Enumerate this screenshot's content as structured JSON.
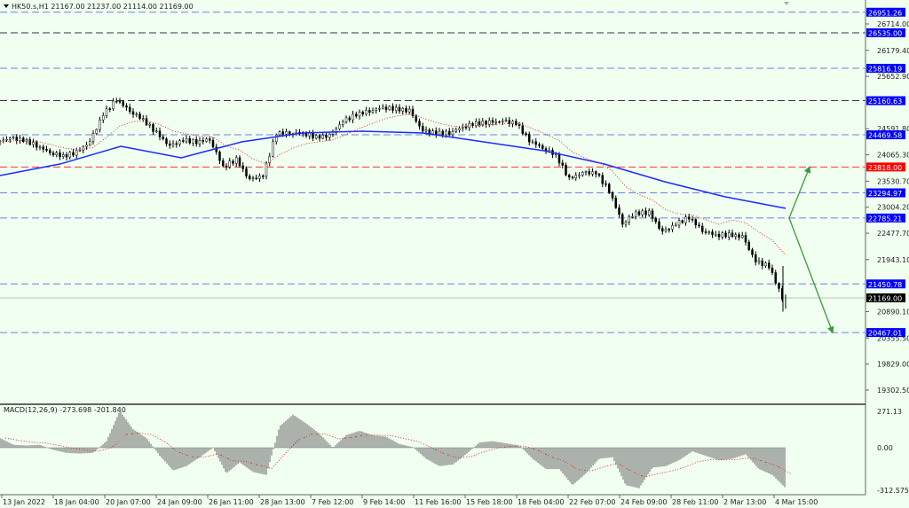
{
  "header": {
    "symbol_info": "HK50.s,H1  21167.00 21237.00 21114.00 21169.00"
  },
  "chart_data": {
    "type": "candlestick",
    "symbol": "HK50.s",
    "timeframe": "H1",
    "ohlc_last": {
      "open": 21167.0,
      "high": 21237.0,
      "low": 21114.0,
      "close": 21169.0
    },
    "ylim": [
      19100,
      27200
    ],
    "price_ticks": [
      "26714.00",
      "26179.40",
      "25652.90",
      "24591.80",
      "24065.30",
      "23530.70",
      "23004.20",
      "22477.70",
      "21943.10",
      "20890.10",
      "20355.50",
      "19829.00",
      "19302.50"
    ],
    "time_ticks": [
      "13 Jan 2022",
      "18 Jan 04:00",
      "20 Jan 07:00",
      "24 Jan 09:00",
      "26 Jan 11:00",
      "28 Jan 13:00",
      "7 Feb 12:00",
      "9 Feb 14:00",
      "11 Feb 16:00",
      "15 Feb 18:00",
      "18 Feb 04:00",
      "22 Feb 07:00",
      "24 Feb 09:00",
      "28 Feb 11:00",
      "2 Mar 13:00",
      "4 Mar 15:00"
    ],
    "close": [
      24327,
      24399,
      24363,
      24255,
      24112,
      24040,
      24112,
      24327,
      24884,
      25189,
      24955,
      24776,
      24507,
      24237,
      24363,
      24327,
      24381,
      23825,
      23968,
      23555,
      23645,
      24507,
      24507,
      24507,
      24417,
      24453,
      24740,
      24884,
      24955,
      25027,
      24991,
      24955,
      24542,
      24507,
      24507,
      24632,
      24704,
      24722,
      24740,
      24704,
      24363,
      24201,
      24058,
      23573,
      23699,
      23699,
      23340,
      22676,
      22891,
      22891,
      22496,
      22658,
      22802,
      22532,
      22443,
      22443,
      22407,
      21904,
      21814,
      21169
    ],
    "slow_ma": [
      23645,
      23880,
      24237,
      24004,
      24327,
      24507,
      24542,
      24507,
      24327,
      24148,
      23878,
      23519,
      23214,
      22981
    ],
    "colors": {
      "background": "#f0fff0",
      "slow_ma": "#1a2cff",
      "fast_ma": "#e03030",
      "level_label": "#0000ff",
      "support_resistance": "#7080e0",
      "key_level": "#ff3030",
      "arrows": "#3a9a3a"
    },
    "levels": [
      {
        "price": 26951.26,
        "label": "26951.26",
        "style": "light"
      },
      {
        "price": 26535.0,
        "label": "26535.00",
        "style": "dark"
      },
      {
        "price": 25816.19,
        "label": "25816.19",
        "style": "light"
      },
      {
        "price": 25160.63,
        "label": "25160.63",
        "style": "dark"
      },
      {
        "price": 24469.58,
        "label": "24469.58",
        "style": "light"
      },
      {
        "price": 23818.0,
        "label": "23818.00",
        "style": "red"
      },
      {
        "price": 23294.97,
        "label": "23294.97",
        "style": "light"
      },
      {
        "price": 22785.21,
        "label": "22785.21",
        "style": "light"
      },
      {
        "price": 21450.78,
        "label": "21450.78",
        "style": "light"
      },
      {
        "price": 20467.01,
        "label": "20467.01",
        "style": "light"
      }
    ],
    "current_price": {
      "price": 21169.0,
      "label": "21169.00"
    },
    "projections": [
      {
        "from": 22785.21,
        "to": 23818.0,
        "direction": "up"
      },
      {
        "from": 22785.21,
        "to": 20467.01,
        "direction": "down"
      }
    ],
    "macd": {
      "title": "MACD(12,26,9) -273.698 -201.840",
      "ylim": [
        -312.575,
        271.13
      ],
      "ticks": [
        "271.13",
        "0.00",
        "-312.575"
      ],
      "values": [
        66,
        20,
        15,
        20,
        -15,
        -35,
        -40,
        -35,
        45,
        250,
        125,
        66,
        -54,
        -155,
        -125,
        -65,
        0,
        -175,
        -100,
        -165,
        -185,
        145,
        225,
        165,
        95,
        0,
        85,
        115,
        85,
        75,
        25,
        5,
        -75,
        -125,
        -115,
        -45,
        35,
        45,
        30,
        15,
        -75,
        -145,
        -145,
        -255,
        -175,
        -75,
        -65,
        -255,
        -275,
        -135,
        -125,
        -85,
        -25,
        -55,
        -85,
        -75,
        -45,
        -145,
        -185,
        -274
      ]
    }
  }
}
